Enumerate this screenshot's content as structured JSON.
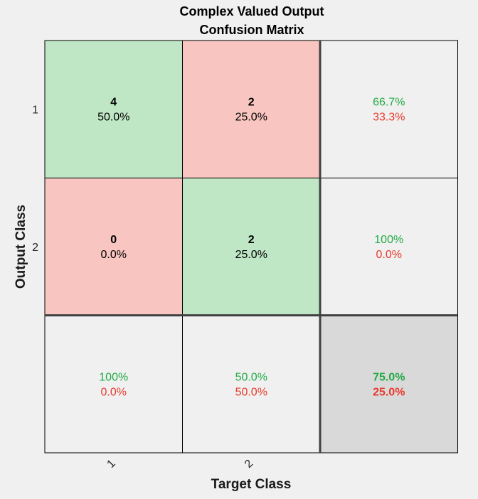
{
  "title_lines": [
    "Complex Valued Output",
    "Confusion Matrix"
  ],
  "colors": {
    "background": "#f0f0f0",
    "correct_cell": "#bfe6c5",
    "incorrect_cell": "#f8c5c0",
    "summary_cell": "#f0f0f0",
    "overall_cell": "#d9d9d9",
    "correct_text": "#22aa44",
    "incorrect_text": "#e8392c",
    "grid": "#000000",
    "thick_grid": "#404040"
  },
  "chart_data": {
    "type": "heatmap",
    "title": "Complex Valued Output Confusion Matrix",
    "xlabel": "Target Class",
    "ylabel": "Output Class",
    "x_tick_labels": [
      "1",
      "2"
    ],
    "y_tick_labels": [
      "1",
      "2"
    ],
    "matrix": [
      [
        {
          "count": "4",
          "percent": "50.0%"
        },
        {
          "count": "2",
          "percent": "25.0%"
        }
      ],
      [
        {
          "count": "0",
          "percent": "0.0%"
        },
        {
          "count": "2",
          "percent": "25.0%"
        }
      ]
    ],
    "row_summary": [
      {
        "correct": "66.7%",
        "incorrect": "33.3%"
      },
      {
        "correct": "100%",
        "incorrect": "0.0%"
      }
    ],
    "column_summary": [
      {
        "correct": "100%",
        "incorrect": "0.0%"
      },
      {
        "correct": "50.0%",
        "incorrect": "50.0%"
      }
    ],
    "overall": {
      "correct": "75.0%",
      "incorrect": "25.0%"
    }
  }
}
